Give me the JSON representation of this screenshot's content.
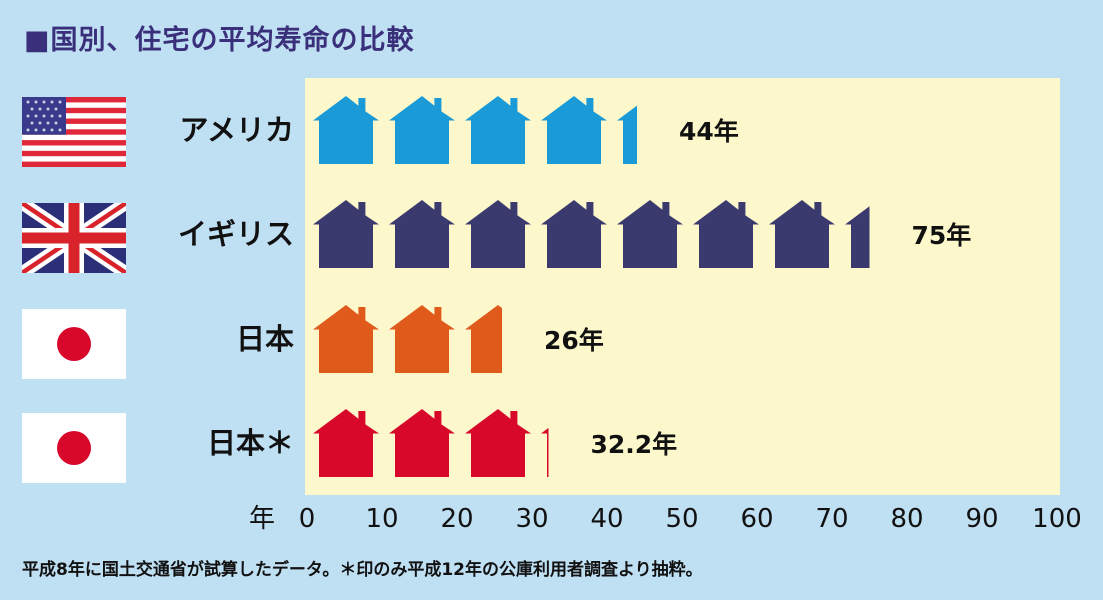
{
  "title": "■国別、住宅の平均寿命の比較",
  "footnote": "平成8年に国土交通省が試算したデータ。＊印のみ平成12年の公庫利用者調査より抽粋。",
  "colors": {
    "background": "#bfdff3",
    "plot_area": "#fdf8cc",
    "title": "#3a2f7a"
  },
  "chart_data": {
    "type": "bar",
    "categories": [
      "アメリカ",
      "イギリス",
      "日本",
      "日本＊"
    ],
    "values": [
      44,
      75,
      26,
      32.2
    ],
    "value_labels": [
      "44年",
      "75年",
      "26年",
      "32.2年"
    ],
    "bar_colors": [
      "#1a9ad6",
      "#3b3a6e",
      "#e05a1c",
      "#d7082a"
    ],
    "flags": [
      "us-flag-icon",
      "uk-flag-icon",
      "japan-flag-icon",
      "japan-flag-icon"
    ],
    "xlabel": "年",
    "xlim": [
      0,
      100
    ],
    "xticks": [
      "0",
      "10",
      "20",
      "30",
      "40",
      "50",
      "60",
      "70",
      "80",
      "90",
      "100"
    ],
    "orientation": "horizontal",
    "grid": false
  }
}
